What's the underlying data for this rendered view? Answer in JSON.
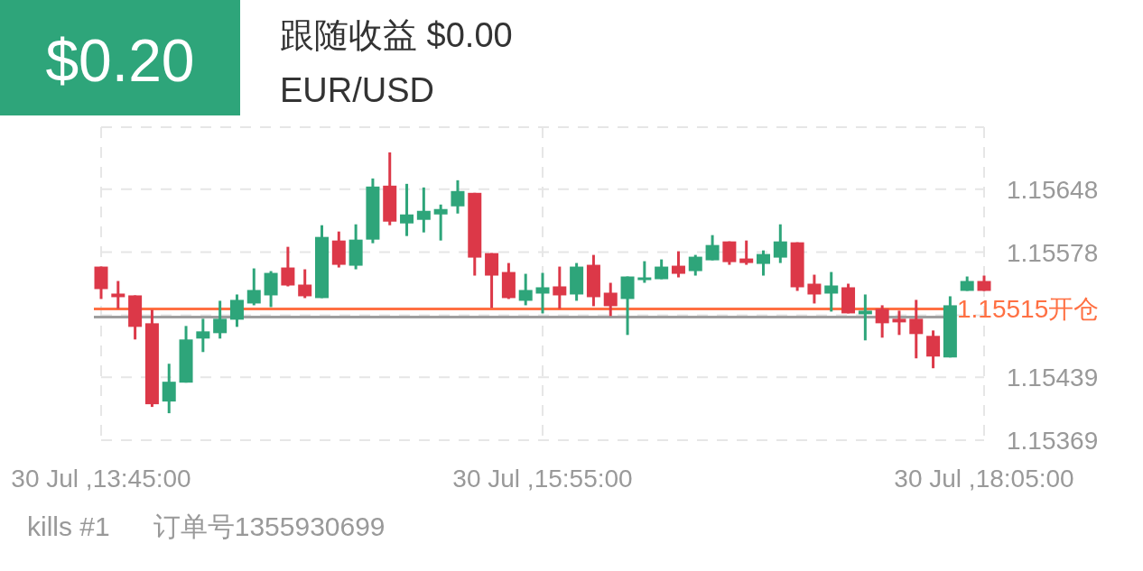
{
  "chart_data": {
    "type": "candlestick",
    "title": "跟随收益 $0.00",
    "subtitle": "EUR/USD",
    "annotations": [
      "$0.20",
      "kills #1",
      "订单号1355930699"
    ],
    "categories": [
      "30 Jul ,13:45:00",
      null,
      null,
      null,
      null,
      null,
      null,
      null,
      null,
      null,
      null,
      null,
      null,
      null,
      null,
      null,
      null,
      null,
      null,
      null,
      null,
      null,
      null,
      null,
      null,
      null,
      "30 Jul ,15:55:00",
      null,
      null,
      null,
      null,
      null,
      null,
      null,
      null,
      null,
      null,
      null,
      null,
      null,
      null,
      null,
      null,
      null,
      null,
      null,
      null,
      null,
      null,
      null,
      null,
      null,
      "30 Jul ,18:05:00"
    ],
    "ohlc": [
      [
        1.15562,
        1.15562,
        1.15526,
        1.15537
      ],
      [
        1.15532,
        1.15546,
        1.15515,
        1.15528
      ],
      [
        1.1553,
        1.1553,
        1.15481,
        1.15495
      ],
      [
        1.15499,
        1.15514,
        1.15406,
        1.15409
      ],
      [
        1.15412,
        1.15454,
        1.15399,
        1.15434
      ],
      [
        1.15433,
        1.15496,
        1.15433,
        1.15481
      ],
      [
        1.15482,
        1.15504,
        1.15467,
        1.1549
      ],
      [
        1.15488,
        1.15524,
        1.15482,
        1.15504
      ],
      [
        1.15503,
        1.15531,
        1.15495,
        1.15525
      ],
      [
        1.15521,
        1.1556,
        1.15519,
        1.15536
      ],
      [
        1.1553,
        1.15557,
        1.15517,
        1.15555
      ],
      [
        1.15561,
        1.15584,
        1.1554,
        1.15541
      ],
      [
        1.15542,
        1.15559,
        1.15527,
        1.15529
      ],
      [
        1.15527,
        1.15608,
        1.15527,
        1.15595
      ],
      [
        1.15591,
        1.15601,
        1.15561,
        1.15564
      ],
      [
        1.15563,
        1.15609,
        1.15559,
        1.15592
      ],
      [
        1.15592,
        1.1566,
        1.15588,
        1.15651
      ],
      [
        1.15652,
        1.15689,
        1.15608,
        1.15612
      ],
      [
        1.1561,
        1.15654,
        1.15596,
        1.1562
      ],
      [
        1.15614,
        1.1565,
        1.156,
        1.15624
      ],
      [
        1.1562,
        1.15631,
        1.15591,
        1.15626
      ],
      [
        1.15629,
        1.15658,
        1.15621,
        1.15646
      ],
      [
        1.15644,
        1.15644,
        1.15552,
        1.15572
      ],
      [
        1.15577,
        1.15577,
        1.15516,
        1.15552
      ],
      [
        1.15556,
        1.15566,
        1.15526,
        1.15527
      ],
      [
        1.15524,
        1.15554,
        1.15519,
        1.15536
      ],
      [
        1.15532,
        1.15555,
        1.1551,
        1.15539
      ],
      [
        1.1554,
        1.15562,
        1.15515,
        1.1553
      ],
      [
        1.15531,
        1.15566,
        1.15524,
        1.15562
      ],
      [
        1.15564,
        1.15575,
        1.15518,
        1.15528
      ],
      [
        1.15533,
        1.15544,
        1.15507,
        1.15518
      ],
      [
        1.15526,
        1.15551,
        1.15486,
        1.15551
      ],
      [
        1.15547,
        1.15568,
        1.15544,
        1.1555
      ],
      [
        1.15548,
        1.1557,
        1.15548,
        1.15562
      ],
      [
        1.15563,
        1.15579,
        1.1555,
        1.15554
      ],
      [
        1.15557,
        1.15575,
        1.15552,
        1.15573
      ],
      [
        1.15569,
        1.15597,
        1.15569,
        1.15586
      ],
      [
        1.1559,
        1.1559,
        1.15564,
        1.15567
      ],
      [
        1.15571,
        1.15591,
        1.15564,
        1.15566
      ],
      [
        1.15565,
        1.1558,
        1.15552,
        1.15576
      ],
      [
        1.15572,
        1.15609,
        1.15566,
        1.1559
      ],
      [
        1.15589,
        1.15589,
        1.15535,
        1.15539
      ],
      [
        1.15543,
        1.15553,
        1.15521,
        1.15531
      ],
      [
        1.15532,
        1.15556,
        1.15512,
        1.15541
      ],
      [
        1.15539,
        1.15543,
        1.1551,
        1.1551
      ],
      [
        1.15509,
        1.15531,
        1.1548,
        1.15513
      ],
      [
        1.15515,
        1.15519,
        1.15483,
        1.15499
      ],
      [
        1.15504,
        1.15513,
        1.15486,
        1.155
      ],
      [
        1.15504,
        1.15525,
        1.1546,
        1.15487
      ],
      [
        1.15485,
        1.15491,
        1.15449,
        1.15462
      ],
      [
        1.15461,
        1.15529,
        1.15461,
        1.15519
      ],
      [
        1.15535,
        1.15551,
        1.15535,
        1.15546
      ],
      [
        1.15546,
        1.15552,
        1.15535,
        1.15535
      ]
    ],
    "ylim": [
      1.15369,
      1.15717
    ],
    "yticks": [
      1.15369,
      1.15439,
      {
        "value": 1.15508,
        "label": null
      },
      1.15578,
      1.15648,
      {
        "value": 1.15717,
        "label": null
      }
    ],
    "ref_lines": [
      {
        "axis": "y",
        "value": 1.15506,
        "color": "#9e9e9e"
      },
      {
        "axis": "y",
        "value": 1.15515,
        "label": "1.15515开仓",
        "color": "#ff7043"
      }
    ],
    "grid": true
  }
}
